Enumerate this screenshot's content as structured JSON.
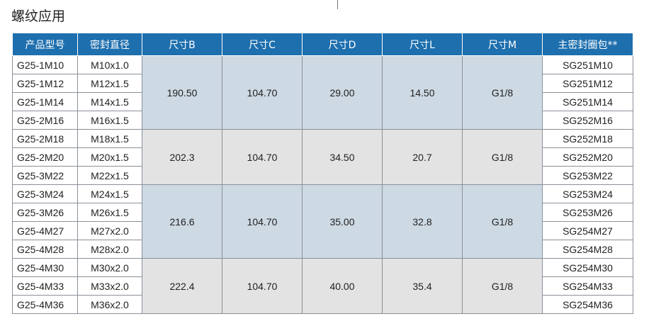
{
  "title": "螺纹应用",
  "table": {
    "headers": [
      "产品型号",
      "密封直径",
      "尺寸B",
      "尺寸C",
      "尺寸D",
      "尺寸L",
      "尺寸M",
      "主密封圈包**"
    ],
    "groups": [
      {
        "shade": "blue",
        "B": "190.50",
        "C": "104.70",
        "D": "29.00",
        "L": "14.50",
        "M": "G1/8",
        "rows": [
          {
            "model": "G25-1M10",
            "diameter": "M10x1.0",
            "seal": "SG251M10"
          },
          {
            "model": "G25-1M12",
            "diameter": "M12x1.5",
            "seal": "SG251M12"
          },
          {
            "model": "G25-1M14",
            "diameter": "M14x1.5",
            "seal": "SG251M14"
          },
          {
            "model": "G25-2M16",
            "diameter": "M16x1.5",
            "seal": "SG252M16"
          }
        ]
      },
      {
        "shade": "gray",
        "B": "202.3",
        "C": "104.70",
        "D": "34.50",
        "L": "20.7",
        "M": "G1/8",
        "rows": [
          {
            "model": "G25-2M18",
            "diameter": "M18x1.5",
            "seal": "SG252M18"
          },
          {
            "model": "G25-2M20",
            "diameter": "M20x1.5",
            "seal": "SG252M20"
          },
          {
            "model": "G25-3M22",
            "diameter": "M22x1.5",
            "seal": "SG253M22"
          }
        ]
      },
      {
        "shade": "blue",
        "B": "216.6",
        "C": "104.70",
        "D": "35.00",
        "L": "32.8",
        "M": "G1/8",
        "rows": [
          {
            "model": "G25-3M24",
            "diameter": "M24x1.5",
            "seal": "SG253M24"
          },
          {
            "model": "G25-3M26",
            "diameter": "M26x1.5",
            "seal": "SG253M26"
          },
          {
            "model": "G25-4M27",
            "diameter": "M27x2.0",
            "seal": "SG254M27"
          },
          {
            "model": "G25-4M28",
            "diameter": "M28x2.0",
            "seal": "SG254M28"
          }
        ]
      },
      {
        "shade": "gray",
        "B": "222.4",
        "C": "104.70",
        "D": "40.00",
        "L": "35.4",
        "M": "G1/8",
        "rows": [
          {
            "model": "G25-4M30",
            "diameter": "M30x2.0",
            "seal": "SG254M30"
          },
          {
            "model": "G25-4M33",
            "diameter": "M33x2.0",
            "seal": "SG254M33"
          },
          {
            "model": "G25-4M36",
            "diameter": "M36x2.0",
            "seal": "SG254M36"
          }
        ]
      }
    ]
  }
}
